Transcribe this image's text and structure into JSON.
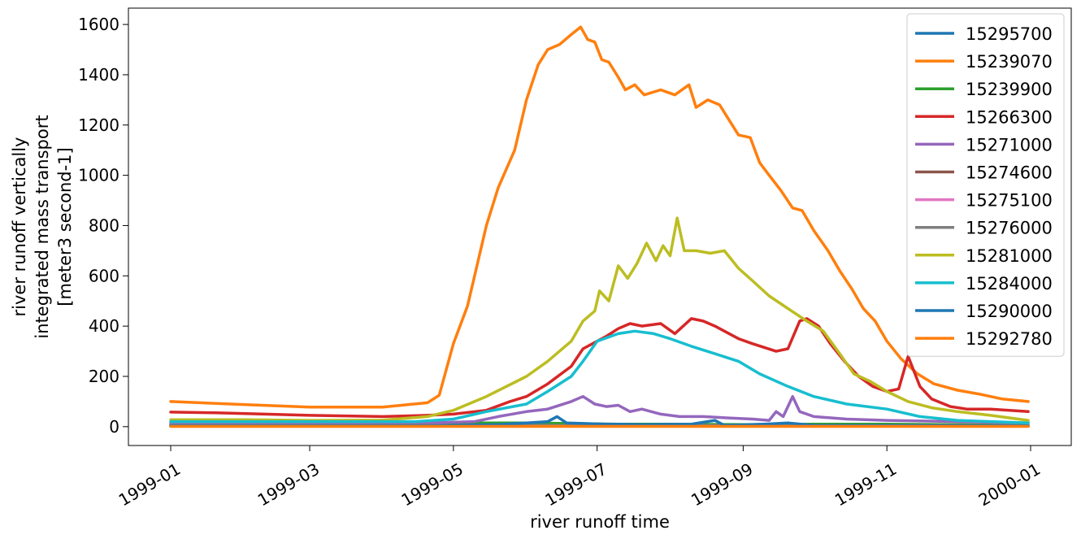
{
  "chart_data": {
    "type": "line",
    "xlabel": "river runoff time",
    "ylabel_lines": [
      "river runoff vertically",
      "integrated mass transport",
      "[meter3 second-1]"
    ],
    "xlim": [
      "1999-01-01",
      "2000-01-01"
    ],
    "ylim": [
      -75,
      1665
    ],
    "x_ticks": [
      "1999-01",
      "1999-03",
      "1999-05",
      "1999-07",
      "1999-09",
      "1999-11",
      "2000-01"
    ],
    "y_ticks": [
      0,
      200,
      400,
      600,
      800,
      1000,
      1200,
      1400,
      1600
    ],
    "grid": false,
    "legend_position": "top-right",
    "series": [
      {
        "name": "15295700",
        "color": "#1f77b4",
        "points": [
          [
            "1999-01-01",
            3
          ],
          [
            "1999-06-01",
            3
          ],
          [
            "1999-07-01",
            3
          ],
          [
            "1999-12-31",
            3
          ]
        ]
      },
      {
        "name": "15239070",
        "color": "#ff7f0e",
        "points": [
          [
            "1999-01-01",
            100
          ],
          [
            "1999-02-01",
            88
          ],
          [
            "1999-03-01",
            78
          ],
          [
            "1999-04-01",
            78
          ],
          [
            "1999-04-20",
            95
          ],
          [
            "1999-04-25",
            125
          ],
          [
            "1999-05-01",
            330
          ],
          [
            "1999-05-07",
            480
          ],
          [
            "1999-05-12",
            680
          ],
          [
            "1999-05-15",
            800
          ],
          [
            "1999-05-20",
            950
          ],
          [
            "1999-05-27",
            1100
          ],
          [
            "1999-06-01",
            1300
          ],
          [
            "1999-06-06",
            1440
          ],
          [
            "1999-06-10",
            1500
          ],
          [
            "1999-06-15",
            1520
          ],
          [
            "1999-06-20",
            1560
          ],
          [
            "1999-06-24",
            1590
          ],
          [
            "1999-06-27",
            1540
          ],
          [
            "1999-06-30",
            1530
          ],
          [
            "1999-07-03",
            1460
          ],
          [
            "1999-07-06",
            1450
          ],
          [
            "1999-07-10",
            1390
          ],
          [
            "1999-07-13",
            1340
          ],
          [
            "1999-07-17",
            1360
          ],
          [
            "1999-07-21",
            1320
          ],
          [
            "1999-07-28",
            1340
          ],
          [
            "1999-08-03",
            1320
          ],
          [
            "1999-08-09",
            1360
          ],
          [
            "1999-08-12",
            1270
          ],
          [
            "1999-08-17",
            1300
          ],
          [
            "1999-08-22",
            1280
          ],
          [
            "1999-08-26",
            1220
          ],
          [
            "1999-08-30",
            1160
          ],
          [
            "1999-09-04",
            1150
          ],
          [
            "1999-09-08",
            1050
          ],
          [
            "1999-09-12",
            1000
          ],
          [
            "1999-09-17",
            940
          ],
          [
            "1999-09-22",
            870
          ],
          [
            "1999-09-26",
            860
          ],
          [
            "1999-10-01",
            780
          ],
          [
            "1999-10-07",
            700
          ],
          [
            "1999-10-12",
            620
          ],
          [
            "1999-10-17",
            550
          ],
          [
            "1999-10-22",
            470
          ],
          [
            "1999-10-27",
            420
          ],
          [
            "1999-11-01",
            340
          ],
          [
            "1999-11-07",
            270
          ],
          [
            "1999-11-14",
            210
          ],
          [
            "1999-11-21",
            170
          ],
          [
            "1999-12-01",
            145
          ],
          [
            "1999-12-10",
            130
          ],
          [
            "1999-12-20",
            110
          ],
          [
            "1999-12-31",
            100
          ]
        ]
      },
      {
        "name": "15239900",
        "color": "#2ca02c",
        "points": [
          [
            "1999-01-01",
            8
          ],
          [
            "1999-04-20",
            8
          ],
          [
            "1999-05-10",
            15
          ],
          [
            "1999-06-01",
            15
          ],
          [
            "1999-06-25",
            12
          ],
          [
            "1999-07-10",
            10
          ],
          [
            "1999-08-01",
            10
          ],
          [
            "1999-09-01",
            8
          ],
          [
            "1999-10-01",
            10
          ],
          [
            "1999-11-01",
            10
          ],
          [
            "1999-12-31",
            6
          ]
        ]
      },
      {
        "name": "15266300",
        "color": "#d62728",
        "points": [
          [
            "1999-01-01",
            58
          ],
          [
            "1999-01-20",
            55
          ],
          [
            "1999-02-10",
            50
          ],
          [
            "1999-03-01",
            45
          ],
          [
            "1999-04-01",
            40
          ],
          [
            "1999-04-20",
            45
          ],
          [
            "1999-05-01",
            50
          ],
          [
            "1999-05-15",
            65
          ],
          [
            "1999-05-25",
            100
          ],
          [
            "1999-06-01",
            120
          ],
          [
            "1999-06-10",
            170
          ],
          [
            "1999-06-20",
            240
          ],
          [
            "1999-06-25",
            310
          ],
          [
            "1999-07-01",
            340
          ],
          [
            "1999-07-05",
            360
          ],
          [
            "1999-07-10",
            390
          ],
          [
            "1999-07-15",
            410
          ],
          [
            "1999-07-20",
            400
          ],
          [
            "1999-07-28",
            410
          ],
          [
            "1999-08-03",
            370
          ],
          [
            "1999-08-10",
            430
          ],
          [
            "1999-08-15",
            420
          ],
          [
            "1999-08-20",
            400
          ],
          [
            "1999-08-30",
            350
          ],
          [
            "1999-09-05",
            330
          ],
          [
            "1999-09-15",
            300
          ],
          [
            "1999-09-20",
            310
          ],
          [
            "1999-09-25",
            420
          ],
          [
            "1999-09-28",
            430
          ],
          [
            "1999-10-03",
            400
          ],
          [
            "1999-10-08",
            330
          ],
          [
            "1999-10-14",
            260
          ],
          [
            "1999-10-20",
            200
          ],
          [
            "1999-10-26",
            160
          ],
          [
            "1999-11-01",
            140
          ],
          [
            "1999-11-06",
            150
          ],
          [
            "1999-11-10",
            280
          ],
          [
            "1999-11-15",
            160
          ],
          [
            "1999-11-20",
            110
          ],
          [
            "1999-11-28",
            80
          ],
          [
            "1999-12-05",
            70
          ],
          [
            "1999-12-15",
            70
          ],
          [
            "1999-12-31",
            60
          ]
        ]
      },
      {
        "name": "15271000",
        "color": "#9467bd",
        "points": [
          [
            "1999-01-01",
            15
          ],
          [
            "1999-04-20",
            15
          ],
          [
            "1999-05-10",
            20
          ],
          [
            "1999-05-20",
            40
          ],
          [
            "1999-06-01",
            60
          ],
          [
            "1999-06-10",
            70
          ],
          [
            "1999-06-20",
            100
          ],
          [
            "1999-06-25",
            120
          ],
          [
            "1999-06-30",
            90
          ],
          [
            "1999-07-05",
            80
          ],
          [
            "1999-07-10",
            85
          ],
          [
            "1999-07-15",
            60
          ],
          [
            "1999-07-20",
            70
          ],
          [
            "1999-07-28",
            50
          ],
          [
            "1999-08-05",
            40
          ],
          [
            "1999-08-15",
            40
          ],
          [
            "1999-08-25",
            35
          ],
          [
            "1999-09-05",
            30
          ],
          [
            "1999-09-12",
            25
          ],
          [
            "1999-09-15",
            60
          ],
          [
            "1999-09-18",
            40
          ],
          [
            "1999-09-22",
            120
          ],
          [
            "1999-09-25",
            60
          ],
          [
            "1999-10-01",
            40
          ],
          [
            "1999-10-15",
            30
          ],
          [
            "1999-11-01",
            25
          ],
          [
            "1999-12-31",
            15
          ]
        ]
      },
      {
        "name": "15274600",
        "color": "#8c564b",
        "points": [
          [
            "1999-01-01",
            4
          ],
          [
            "1999-12-31",
            4
          ]
        ]
      },
      {
        "name": "15275100",
        "color": "#e377c2",
        "points": [
          [
            "1999-01-01",
            2
          ],
          [
            "1999-05-20",
            2
          ],
          [
            "1999-06-10",
            4
          ],
          [
            "1999-07-01",
            3
          ],
          [
            "1999-12-31",
            2
          ]
        ]
      },
      {
        "name": "15276000",
        "color": "#7f7f7f",
        "points": [
          [
            "1999-01-01",
            5
          ],
          [
            "1999-12-31",
            5
          ]
        ]
      },
      {
        "name": "15281000",
        "color": "#bcbd22",
        "points": [
          [
            "1999-01-01",
            28
          ],
          [
            "1999-02-01",
            28
          ],
          [
            "1999-03-01",
            25
          ],
          [
            "1999-04-01",
            26
          ],
          [
            "1999-04-20",
            40
          ],
          [
            "1999-05-01",
            65
          ],
          [
            "1999-05-15",
            120
          ],
          [
            "1999-06-01",
            200
          ],
          [
            "1999-06-10",
            260
          ],
          [
            "1999-06-20",
            340
          ],
          [
            "1999-06-25",
            420
          ],
          [
            "1999-06-30",
            460
          ],
          [
            "1999-07-02",
            540
          ],
          [
            "1999-07-06",
            500
          ],
          [
            "1999-07-10",
            640
          ],
          [
            "1999-07-14",
            590
          ],
          [
            "1999-07-18",
            650
          ],
          [
            "1999-07-22",
            730
          ],
          [
            "1999-07-26",
            660
          ],
          [
            "1999-07-29",
            720
          ],
          [
            "1999-08-01",
            680
          ],
          [
            "1999-08-04",
            830
          ],
          [
            "1999-08-07",
            700
          ],
          [
            "1999-08-12",
            700
          ],
          [
            "1999-08-18",
            690
          ],
          [
            "1999-08-24",
            700
          ],
          [
            "1999-08-30",
            630
          ],
          [
            "1999-09-05",
            580
          ],
          [
            "1999-09-12",
            520
          ],
          [
            "1999-09-20",
            470
          ],
          [
            "1999-09-28",
            420
          ],
          [
            "1999-10-05",
            380
          ],
          [
            "1999-10-12",
            290
          ],
          [
            "1999-10-18",
            210
          ],
          [
            "1999-10-25",
            180
          ],
          [
            "1999-11-01",
            140
          ],
          [
            "1999-11-10",
            100
          ],
          [
            "1999-11-20",
            75
          ],
          [
            "1999-12-01",
            60
          ],
          [
            "1999-12-15",
            45
          ],
          [
            "1999-12-31",
            25
          ]
        ]
      },
      {
        "name": "15284000",
        "color": "#17becf",
        "points": [
          [
            "1999-01-01",
            20
          ],
          [
            "1999-04-15",
            20
          ],
          [
            "1999-05-01",
            30
          ],
          [
            "1999-05-15",
            60
          ],
          [
            "1999-06-01",
            90
          ],
          [
            "1999-06-10",
            140
          ],
          [
            "1999-06-20",
            200
          ],
          [
            "1999-06-25",
            260
          ],
          [
            "1999-07-01",
            340
          ],
          [
            "1999-07-10",
            370
          ],
          [
            "1999-07-17",
            380
          ],
          [
            "1999-07-25",
            370
          ],
          [
            "1999-08-01",
            350
          ],
          [
            "1999-08-10",
            320
          ],
          [
            "1999-08-20",
            290
          ],
          [
            "1999-08-30",
            260
          ],
          [
            "1999-09-08",
            210
          ],
          [
            "1999-09-20",
            160
          ],
          [
            "1999-10-01",
            120
          ],
          [
            "1999-10-15",
            90
          ],
          [
            "1999-11-01",
            70
          ],
          [
            "1999-11-15",
            40
          ],
          [
            "1999-12-01",
            25
          ],
          [
            "1999-12-31",
            15
          ]
        ]
      },
      {
        "name": "15290000",
        "color": "#1f77b4",
        "points": [
          [
            "1999-01-01",
            3
          ],
          [
            "1999-04-20",
            3
          ],
          [
            "1999-05-20",
            8
          ],
          [
            "1999-06-10",
            20
          ],
          [
            "1999-06-14",
            40
          ],
          [
            "1999-06-18",
            15
          ],
          [
            "1999-07-05",
            10
          ],
          [
            "1999-07-20",
            8
          ],
          [
            "1999-08-10",
            10
          ],
          [
            "1999-08-20",
            25
          ],
          [
            "1999-08-24",
            5
          ],
          [
            "1999-09-10",
            10
          ],
          [
            "1999-09-20",
            15
          ],
          [
            "1999-10-01",
            5
          ],
          [
            "1999-12-31",
            3
          ]
        ]
      },
      {
        "name": "15292780",
        "color": "#ff7f0e",
        "points": [
          [
            "1999-01-01",
            1
          ],
          [
            "1999-12-31",
            1
          ]
        ]
      }
    ]
  }
}
